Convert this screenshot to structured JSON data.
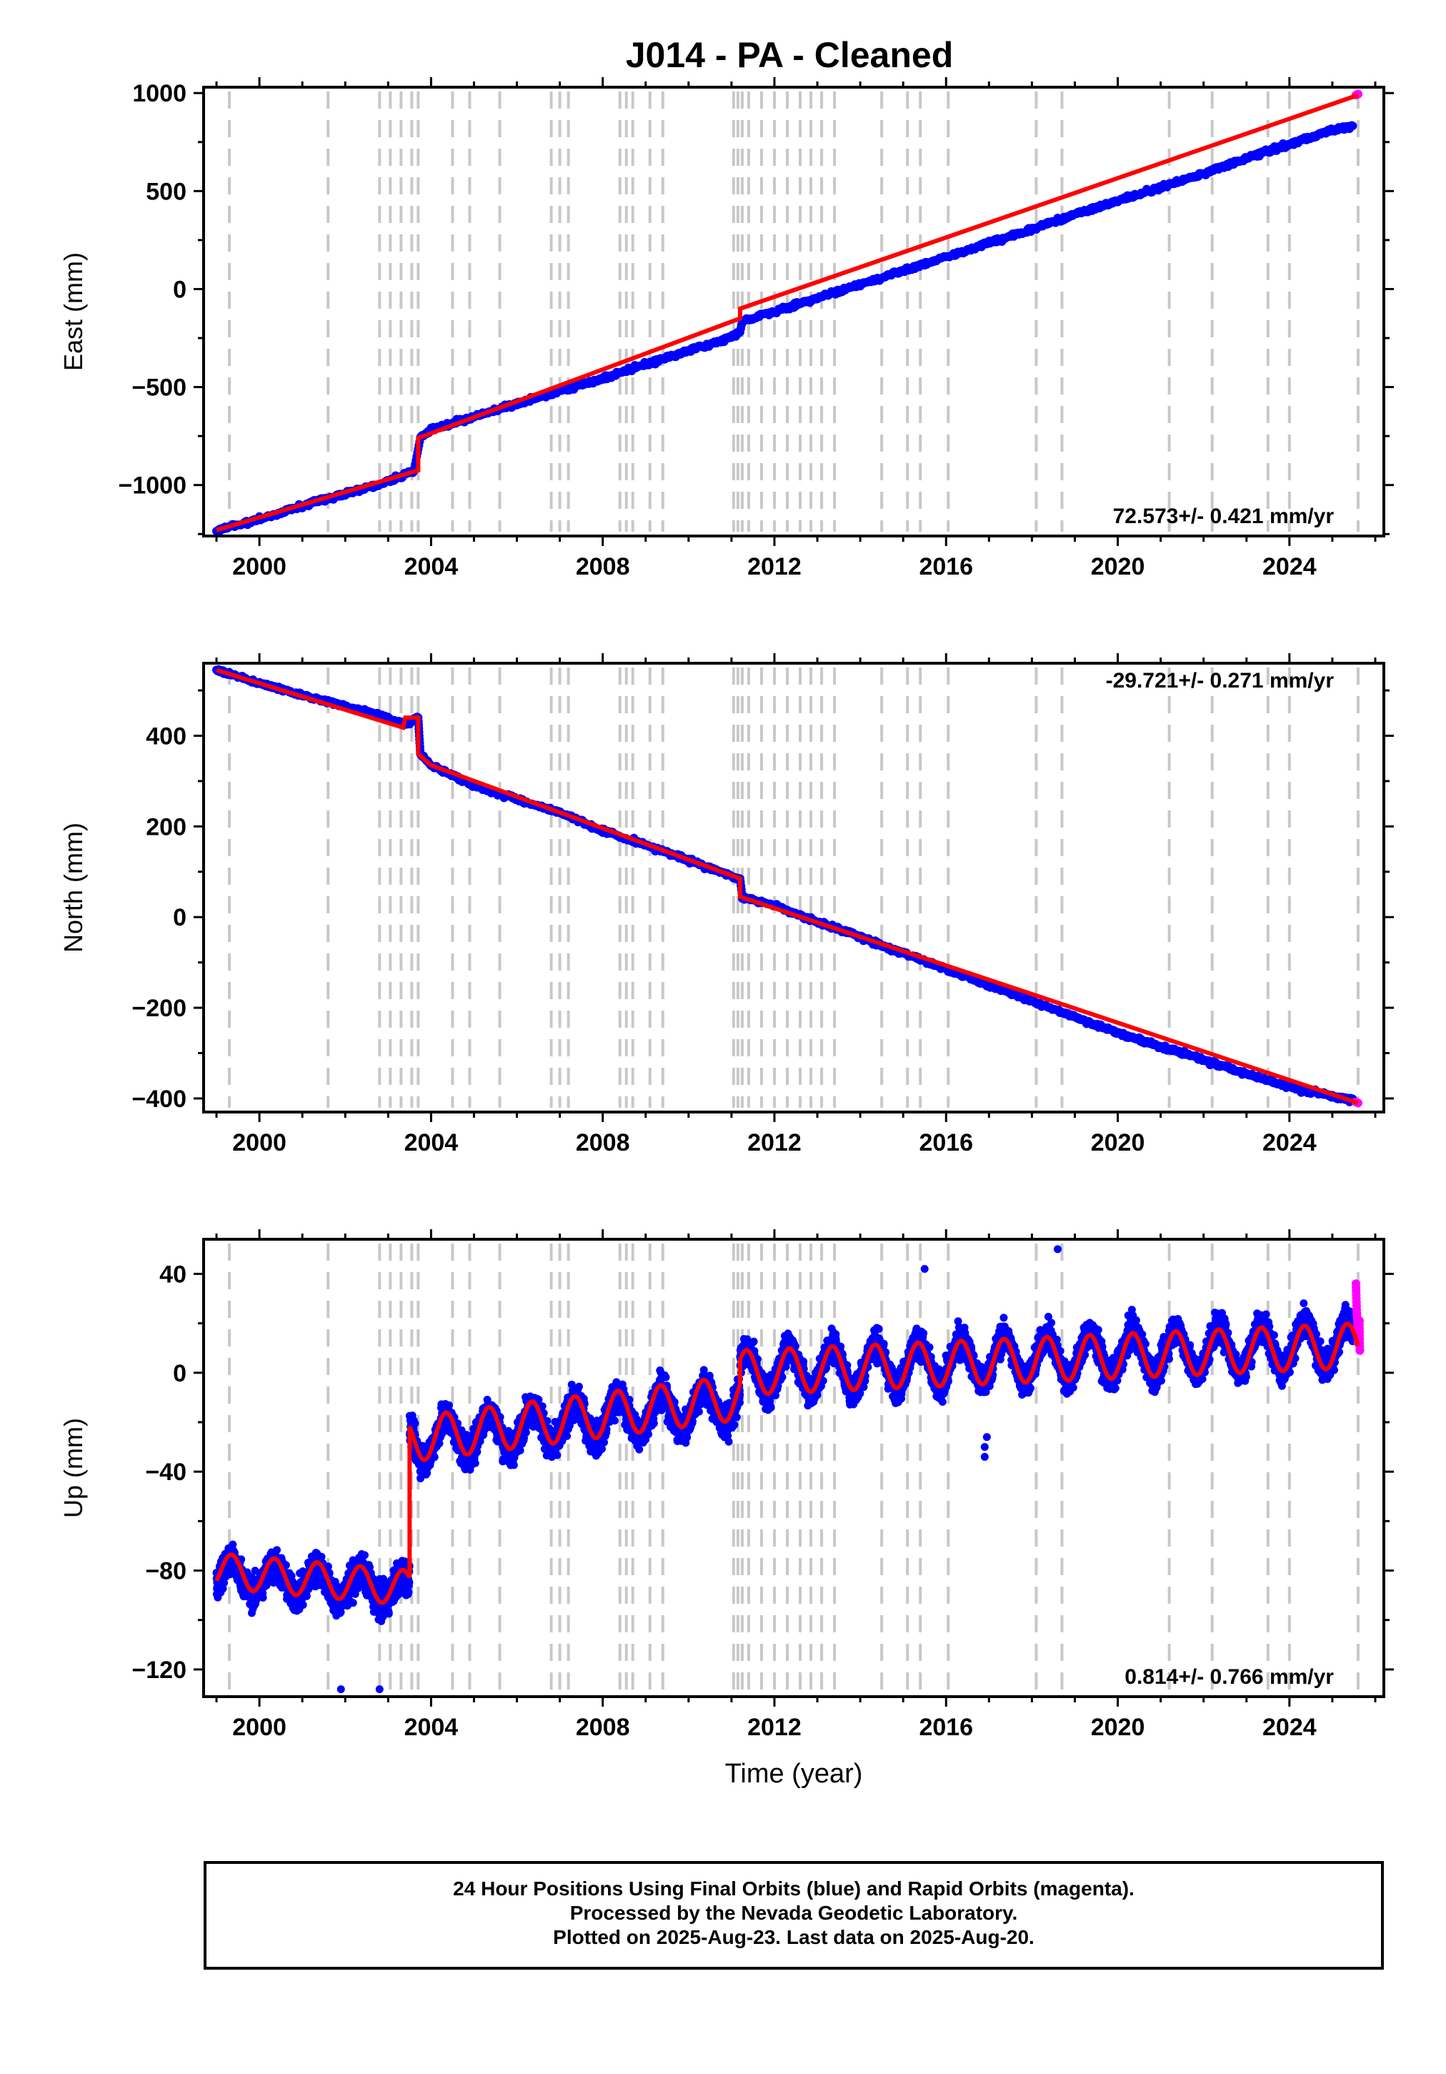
{
  "chart_data": [
    {
      "type": "scatter",
      "title": "J014  - PA - Cleaned",
      "ylabel": "East (mm)",
      "xlabel": "",
      "xlim": [
        1998.7,
        2026.2
      ],
      "ylim": [
        -1260,
        1030
      ],
      "xticks": [
        2000,
        2004,
        2008,
        2012,
        2016,
        2020,
        2024
      ],
      "xtick_labels": [
        "2000",
        "2004",
        "2008",
        "2012",
        "2016",
        "2020",
        "2024"
      ],
      "yticks": [
        -1000,
        -500,
        0,
        500,
        1000
      ],
      "ytick_labels": [
        "−1000",
        "−500",
        "0",
        "500",
        "1000"
      ],
      "rate_label": "72.573+/- 0.421 mm/yr",
      "rate_position": "bottom-right",
      "series": [
        {
          "name": "Final Orbits",
          "color": "#0000ff",
          "kind": "points",
          "x": [
            1999.0,
            2000.0,
            2001.0,
            2002.0,
            2003.0,
            2003.6,
            2003.75,
            2004.0,
            2005.0,
            2006.0,
            2007.0,
            2008.0,
            2009.0,
            2010.0,
            2011.0,
            2011.2,
            2011.25,
            2012.0,
            2013.0,
            2014.0,
            2015.0,
            2016.0,
            2017.0,
            2018.0,
            2019.0,
            2020.0,
            2021.0,
            2022.0,
            2023.0,
            2024.0,
            2025.0,
            2025.5
          ],
          "y": [
            -1230,
            -1175,
            -1105,
            -1045,
            -980,
            -930,
            -760,
            -720,
            -650,
            -585,
            -520,
            -455,
            -385,
            -315,
            -245,
            -220,
            -165,
            -115,
            -45,
            25,
            95,
            165,
            235,
            305,
            380,
            450,
            520,
            590,
            665,
            740,
            810,
            835
          ]
        },
        {
          "name": "Rapid Orbits",
          "color": "#ff00ff",
          "kind": "points",
          "x": [
            2025.55,
            2025.6
          ],
          "y": [
            990,
            995
          ]
        },
        {
          "name": "Model",
          "color": "#ff0000",
          "kind": "line",
          "x": [
            1999.0,
            2003.7,
            2003.7,
            2011.2,
            2011.2,
            2025.6
          ],
          "y": [
            -1230,
            -925,
            -760,
            -150,
            -100,
            990
          ]
        }
      ],
      "event_lines_color": "#c8c8c8"
    },
    {
      "type": "scatter",
      "title": "",
      "ylabel": "North (mm)",
      "xlabel": "",
      "xlim": [
        1998.7,
        2026.2
      ],
      "ylim": [
        -430,
        560
      ],
      "xticks": [
        2000,
        2004,
        2008,
        2012,
        2016,
        2020,
        2024
      ],
      "xtick_labels": [
        "2000",
        "2004",
        "2008",
        "2012",
        "2016",
        "2020",
        "2024"
      ],
      "yticks": [
        -400,
        -200,
        0,
        200,
        400
      ],
      "ytick_labels": [
        "−400",
        "−200",
        "0",
        "200",
        "400"
      ],
      "rate_label": "-29.721+/- 0.271 mm/yr",
      "rate_position": "top-right",
      "series": [
        {
          "name": "Final Orbits",
          "color": "#0000ff",
          "kind": "points",
          "x": [
            1999.0,
            2000.0,
            2001.0,
            2002.0,
            2003.0,
            2003.4,
            2003.7,
            2003.75,
            2004.0,
            2005.0,
            2006.0,
            2007.0,
            2008.0,
            2009.0,
            2010.0,
            2011.0,
            2011.2,
            2011.25,
            2012.0,
            2013.0,
            2014.0,
            2015.0,
            2016.0,
            2017.0,
            2018.0,
            2019.0,
            2020.0,
            2021.0,
            2022.0,
            2023.0,
            2024.0,
            2025.0,
            2025.5
          ],
          "y": [
            545,
            515,
            490,
            465,
            440,
            425,
            440,
            360,
            335,
            290,
            260,
            230,
            190,
            160,
            125,
            90,
            85,
            45,
            25,
            -10,
            -45,
            -80,
            -115,
            -150,
            -185,
            -220,
            -255,
            -285,
            -315,
            -345,
            -375,
            -395,
            -405
          ]
        },
        {
          "name": "Rapid Orbits",
          "color": "#ff00ff",
          "kind": "points",
          "x": [
            2025.55,
            2025.6
          ],
          "y": [
            -408,
            -410
          ]
        },
        {
          "name": "Model",
          "color": "#ff0000",
          "kind": "line",
          "x": [
            1999.0,
            2003.35,
            2003.4,
            2003.7,
            2003.7,
            2004.0,
            2011.2,
            2011.2,
            2025.6
          ],
          "y": [
            545,
            418,
            440,
            440,
            360,
            335,
            85,
            45,
            -410
          ]
        }
      ],
      "event_lines_color": "#c8c8c8"
    },
    {
      "type": "scatter",
      "title": "",
      "ylabel": "Up (mm)",
      "xlabel": "Time (year)",
      "xlim": [
        1998.7,
        2026.2
      ],
      "ylim": [
        -131,
        54
      ],
      "xticks": [
        2000,
        2004,
        2008,
        2012,
        2016,
        2020,
        2024
      ],
      "xtick_labels": [
        "2000",
        "2004",
        "2008",
        "2012",
        "2016",
        "2020",
        "2024"
      ],
      "yticks": [
        -120,
        -80,
        -40,
        0,
        40
      ],
      "ytick_labels": [
        "−120",
        "−80",
        "−40",
        "0",
        "40"
      ],
      "rate_label": "0.814+/- 0.766 mm/yr",
      "rate_position": "bottom-right",
      "series": [
        {
          "name": "Final Orbits",
          "color": "#0000ff",
          "kind": "points-seasonal",
          "segments": [
            {
              "x0": 1999.0,
              "x1": 2003.5,
              "base0": -82,
              "base1": -88,
              "amp": 6,
              "scatter": 12
            },
            {
              "x0": 2003.5,
              "x1": 2011.2,
              "base0": -28,
              "base1": -12,
              "amp": 8,
              "scatter": 12
            },
            {
              "x0": 2011.2,
              "x1": 2025.5,
              "base0": 0,
              "base1": 12,
              "amp": 9,
              "scatter": 11
            }
          ],
          "outliers": [
            [
              2001.9,
              -128
            ],
            [
              2002.8,
              -128
            ],
            [
              2016.9,
              -30
            ],
            [
              2016.9,
              -34
            ],
            [
              2016.95,
              -26
            ],
            [
              2015.5,
              42
            ],
            [
              2018.6,
              50
            ]
          ]
        },
        {
          "name": "Rapid Orbits",
          "color": "#ff00ff",
          "kind": "points",
          "x": [
            2025.55,
            2025.57,
            2025.59,
            2025.6,
            2025.62,
            2025.63,
            2025.64
          ],
          "y": [
            36,
            24,
            18,
            12,
            15,
            21,
            9
          ]
        },
        {
          "name": "Model",
          "color": "#ff0000",
          "kind": "seasonal-line",
          "segments": [
            {
              "x0": 1999.0,
              "x1": 2003.5,
              "base0": -80,
              "base1": -87,
              "amp": 7
            },
            {
              "x0": 2003.5,
              "x1": 2011.2,
              "base0": -27,
              "base1": -10,
              "amp": 9
            },
            {
              "x0": 2011.2,
              "x1": 2025.6,
              "base0": 0,
              "base1": 11,
              "amp": 9
            }
          ]
        }
      ],
      "event_lines_color": "#c8c8c8"
    }
  ],
  "event_lines_x": [
    1999.3,
    2001.6,
    2002.8,
    2003.05,
    2003.3,
    2003.55,
    2003.7,
    2004.5,
    2004.9,
    2005.6,
    2006.8,
    2007.0,
    2007.2,
    2008.4,
    2008.55,
    2008.7,
    2009.1,
    2009.4,
    2011.05,
    2011.15,
    2011.25,
    2011.4,
    2011.7,
    2012.0,
    2012.3,
    2012.6,
    2012.85,
    2013.1,
    2013.4,
    2014.5,
    2015.1,
    2015.4,
    2016.05,
    2018.1,
    2018.7,
    2021.2,
    2022.2,
    2023.5,
    2024.0,
    2025.6
  ],
  "caption": {
    "line1": "24 Hour Positions Using Final Orbits (blue) and Rapid Orbits (magenta).",
    "line2": "Processed by the Nevada Geodetic Laboratory.",
    "line3": "Plotted on 2025-Aug-23. Last data on 2025-Aug-20."
  }
}
